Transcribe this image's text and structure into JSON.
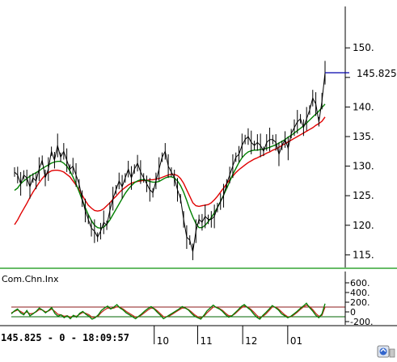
{
  "chart_data": [
    {
      "type": "line",
      "title": "",
      "ylim": [
        113,
        157
      ],
      "y_ticks": [
        "115.",
        "120.",
        "125.",
        "130.",
        "135.",
        "140.",
        "145.",
        "150."
      ],
      "last_value_label": "145.825",
      "x_ticks": [
        "10",
        "11",
        "12",
        "01"
      ],
      "series": [
        {
          "role": "price",
          "color": "#000000",
          "values": [
            129.0,
            128.5,
            127.0,
            128.5,
            128.0,
            126.5,
            128.0,
            127.5,
            129.5,
            131.0,
            128.0,
            129.5,
            132.5,
            131.0,
            133.5,
            131.5,
            132.5,
            131.0,
            129.5,
            130.0,
            128.5,
            127.0,
            124.5,
            122.5,
            121.0,
            119.5,
            119.0,
            118.0,
            119.0,
            120.5,
            120.0,
            122.5,
            124.5,
            126.0,
            127.5,
            126.5,
            128.0,
            129.5,
            128.0,
            129.5,
            130.5,
            129.0,
            128.0,
            127.0,
            126.0,
            125.5,
            127.5,
            129.5,
            131.5,
            132.5,
            130.0,
            129.0,
            128.0,
            126.0,
            124.5,
            121.0,
            118.0,
            117.5,
            115.5,
            119.0,
            121.0,
            120.5,
            121.5,
            121.0,
            121.0,
            121.5,
            123.0,
            124.0,
            125.0,
            127.0,
            128.5,
            130.0,
            131.5,
            132.0,
            133.5,
            134.5,
            135.0,
            134.0,
            133.5,
            134.0,
            133.5,
            132.5,
            134.0,
            134.5,
            134.5,
            134.0,
            132.0,
            133.5,
            134.5,
            133.0,
            135.5,
            136.5,
            137.5,
            138.0,
            136.5,
            138.0,
            139.5,
            141.5,
            140.5,
            137.5,
            141.0,
            145.8
          ]
        },
        {
          "role": "moving-average-short",
          "color": "#008000",
          "values": [
            125.9,
            126.3,
            127.0,
            127.5,
            127.9,
            128.3,
            128.6,
            128.9,
            129.2,
            129.6,
            129.9,
            130.2,
            130.5,
            130.7,
            130.8,
            130.8,
            130.5,
            130.0,
            129.2,
            128.2,
            127.0,
            125.7,
            124.3,
            123.0,
            121.8,
            120.8,
            120.0,
            119.6,
            119.5,
            119.7,
            120.2,
            120.9,
            121.8,
            122.7,
            123.6,
            124.5,
            125.4,
            126.1,
            126.7,
            127.2,
            127.5,
            127.7,
            127.7,
            127.6,
            127.4,
            127.3,
            127.3,
            127.4,
            127.7,
            128.0,
            128.2,
            128.2,
            128.0,
            127.5,
            126.7,
            125.6,
            124.2,
            122.7,
            121.4,
            120.3,
            119.6,
            119.6,
            120.0,
            120.6,
            121.3,
            122.1,
            123.0,
            124.0,
            125.1,
            126.2,
            127.4,
            128.6,
            129.6,
            130.6,
            131.4,
            132.0,
            132.4,
            132.6,
            132.7,
            132.7,
            132.8,
            132.9,
            133.0,
            133.2,
            133.4,
            133.6,
            133.9,
            134.2,
            134.5,
            134.9,
            135.2,
            135.6,
            136.0,
            136.4,
            136.8,
            137.3,
            137.8,
            138.3,
            138.8,
            139.3,
            139.9,
            140.5
          ]
        },
        {
          "role": "moving-average-long",
          "color": "#e00000",
          "values": [
            120.1,
            120.9,
            121.9,
            122.8,
            123.7,
            124.7,
            125.6,
            126.4,
            127.2,
            127.9,
            128.5,
            128.9,
            129.2,
            129.3,
            129.3,
            129.2,
            129.0,
            128.6,
            128.2,
            127.5,
            126.8,
            126.0,
            125.1,
            124.2,
            123.4,
            122.9,
            122.5,
            122.4,
            122.5,
            122.8,
            123.3,
            123.8,
            124.4,
            124.9,
            125.5,
            126.0,
            126.4,
            126.8,
            127.1,
            127.3,
            127.4,
            127.5,
            127.6,
            127.6,
            127.7,
            127.7,
            127.8,
            127.9,
            128.1,
            128.3,
            128.5,
            128.6,
            128.6,
            128.4,
            127.9,
            127.1,
            126.0,
            124.9,
            123.8,
            123.3,
            123.2,
            123.3,
            123.4,
            123.5,
            123.8,
            124.3,
            124.9,
            125.6,
            126.3,
            127.0,
            127.7,
            128.3,
            128.9,
            129.4,
            129.8,
            130.2,
            130.6,
            130.9,
            131.2,
            131.4,
            131.7,
            131.9,
            132.2,
            132.4,
            132.7,
            132.9,
            133.2,
            133.5,
            133.8,
            134.1,
            134.4,
            134.7,
            135.0,
            135.3,
            135.6,
            135.9,
            136.2,
            136.5,
            136.9,
            137.2,
            137.6,
            138.3
          ]
        }
      ]
    },
    {
      "type": "line",
      "title": "Com.Chn.Inx",
      "ylim": [
        -250,
        800
      ],
      "y_ticks": [
        "600.",
        "400.",
        "200.",
        "0",
        "-200."
      ],
      "reference_lines": [
        100,
        -100
      ],
      "series": [
        {
          "role": "oscillator",
          "color": "#008000",
          "values": [
            -40,
            20,
            60,
            -20,
            -60,
            30,
            -80,
            -40,
            10,
            80,
            40,
            -20,
            30,
            90,
            -30,
            -90,
            -60,
            -120,
            -80,
            -140,
            -70,
            -110,
            -30,
            10,
            -50,
            -90,
            -150,
            -120,
            -60,
            30,
            80,
            120,
            60,
            100,
            150,
            80,
            40,
            -20,
            -60,
            -100,
            -140,
            -90,
            -40,
            20,
            70,
            110,
            60,
            -10,
            -70,
            -140,
            -100,
            -60,
            -20,
            20,
            60,
            110,
            80,
            40,
            -30,
            -90,
            -120,
            -150,
            -70,
            20,
            80,
            140,
            90,
            60,
            10,
            -60,
            -110,
            -80,
            -20,
            40,
            110,
            150,
            90,
            40,
            -40,
            -110,
            -150,
            -70,
            -10,
            60,
            130,
            90,
            40,
            -40,
            -80,
            -120,
            -90,
            -40,
            10,
            70,
            120,
            180,
            90,
            20,
            -70,
            -120,
            -40,
            170
          ]
        },
        {
          "role": "signal",
          "color": "#c03020",
          "values": [
            -20,
            10,
            40,
            10,
            -30,
            0,
            -40,
            -30,
            0,
            50,
            40,
            0,
            20,
            60,
            10,
            -50,
            -60,
            -90,
            -80,
            -110,
            -80,
            -90,
            -50,
            -10,
            -30,
            -60,
            -110,
            -110,
            -80,
            -10,
            40,
            80,
            70,
            80,
            110,
            90,
            60,
            10,
            -30,
            -70,
            -110,
            -100,
            -60,
            -10,
            40,
            80,
            70,
            20,
            -40,
            -100,
            -100,
            -80,
            -40,
            0,
            40,
            80,
            80,
            50,
            0,
            -60,
            -100,
            -120,
            -90,
            -20,
            40,
            100,
            100,
            70,
            30,
            -30,
            -80,
            -80,
            -40,
            20,
            80,
            120,
            100,
            60,
            0,
            -70,
            -120,
            -90,
            -40,
            30,
            100,
            100,
            60,
            0,
            -60,
            -100,
            -100,
            -60,
            -10,
            50,
            100,
            140,
            110,
            50,
            -30,
            -90,
            -70,
            100
          ]
        }
      ]
    }
  ],
  "footer": {
    "readout": "145.825 - 0 - 18:09:57"
  },
  "colors": {
    "axis": "#000000",
    "separator": "#66bb66",
    "last_value_marker": "#0000aa",
    "lower_high_line": "#8b1a1a",
    "lower_low_line": "#006400"
  },
  "icons": [
    "toolbar-icon"
  ]
}
